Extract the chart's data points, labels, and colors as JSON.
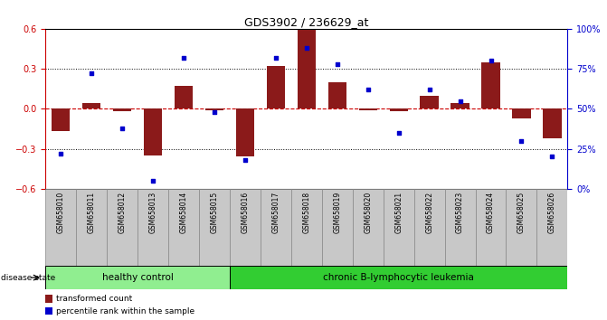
{
  "title": "GDS3902 / 236629_at",
  "samples": [
    "GSM658010",
    "GSM658011",
    "GSM658012",
    "GSM658013",
    "GSM658014",
    "GSM658015",
    "GSM658016",
    "GSM658017",
    "GSM658018",
    "GSM658019",
    "GSM658020",
    "GSM658021",
    "GSM658022",
    "GSM658023",
    "GSM658024",
    "GSM658025",
    "GSM658026"
  ],
  "red_bars": [
    -0.17,
    0.04,
    -0.02,
    -0.35,
    0.17,
    -0.01,
    -0.36,
    0.32,
    0.59,
    0.2,
    -0.01,
    -0.02,
    0.1,
    0.04,
    0.35,
    -0.07,
    -0.22
  ],
  "blue_dots": [
    22,
    72,
    38,
    5,
    82,
    48,
    18,
    82,
    88,
    78,
    62,
    35,
    62,
    55,
    80,
    30,
    20
  ],
  "group_labels": [
    "healthy control",
    "chronic B-lymphocytic leukemia"
  ],
  "healthy_count": 6,
  "leukemia_count": 11,
  "left_ylim": [
    -0.6,
    0.6
  ],
  "right_ylim": [
    0,
    100
  ],
  "left_yticks": [
    -0.6,
    -0.3,
    0,
    0.3,
    0.6
  ],
  "right_yticks": [
    0,
    25,
    50,
    75,
    100
  ],
  "right_yticklabels": [
    "0%",
    "25%",
    "50%",
    "75%",
    "100%"
  ],
  "bar_color": "#8B1A1A",
  "dot_color": "#0000CD",
  "healthy_color": "#90EE90",
  "leukemia_color": "#32CD32",
  "zero_line_color": "#CC0000",
  "bg_color": "#FFFFFF",
  "label_area_color": "#C8C8C8"
}
